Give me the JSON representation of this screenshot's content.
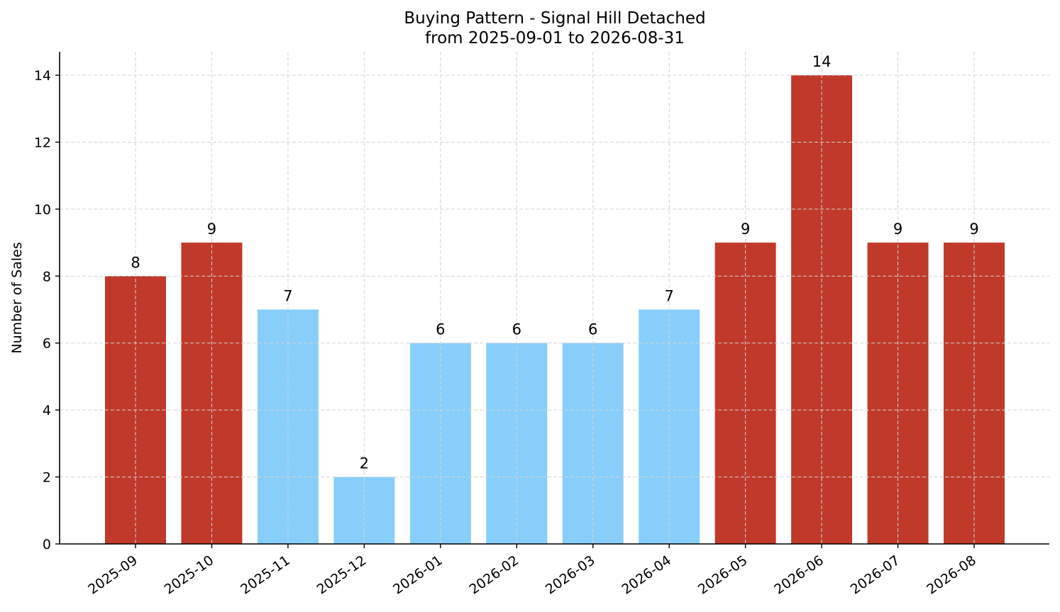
{
  "chart_data": {
    "type": "bar",
    "title_lines": [
      "Buying Pattern - Signal Hill Detached",
      "from 2025-09-01 to 2026-08-31"
    ],
    "xlabel": "",
    "ylabel": "Number of Sales",
    "categories": [
      "2025-09",
      "2025-10",
      "2025-11",
      "2025-12",
      "2026-01",
      "2026-02",
      "2026-03",
      "2026-04",
      "2026-05",
      "2026-06",
      "2026-07",
      "2026-08"
    ],
    "values": [
      8,
      9,
      7,
      2,
      6,
      6,
      6,
      7,
      9,
      14,
      9,
      9
    ],
    "bar_colors": [
      "#c0392b",
      "#c0392b",
      "#87cefa",
      "#87cefa",
      "#87cefa",
      "#87cefa",
      "#87cefa",
      "#87cefa",
      "#c0392b",
      "#c0392b",
      "#c0392b",
      "#c0392b"
    ],
    "ylim": [
      0,
      14.7
    ],
    "yticks": [
      0,
      2,
      4,
      6,
      8,
      10,
      12,
      14
    ],
    "grid": true,
    "data_labels": true,
    "legend": "none"
  }
}
